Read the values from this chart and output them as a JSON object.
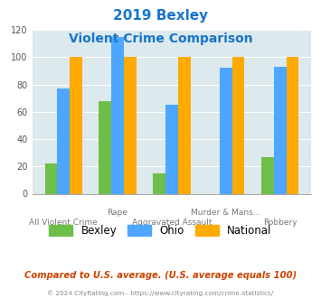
{
  "title_line1": "2019 Bexley",
  "title_line2": "Violent Crime Comparison",
  "title_color": "#1874cd",
  "cat_line1": [
    "",
    "Rape",
    "",
    "Murder & Mans...",
    ""
  ],
  "cat_line2": [
    "All Violent Crime",
    "",
    "Aggravated Assault",
    "",
    "Robbery"
  ],
  "bexley": [
    22,
    68,
    15,
    0,
    27
  ],
  "ohio": [
    77,
    115,
    65,
    92,
    93
  ],
  "national": [
    100,
    100,
    100,
    100,
    100
  ],
  "bexley_color": "#6dbf4a",
  "ohio_color": "#4da6ff",
  "national_color": "#ffaa00",
  "bg_color": "#dce9ed",
  "ylim": [
    0,
    120
  ],
  "yticks": [
    0,
    20,
    40,
    60,
    80,
    100,
    120
  ],
  "footnote": "Compared to U.S. average. (U.S. average equals 100)",
  "footnote_color": "#cc4400",
  "copyright": "© 2024 CityRating.com - https://www.cityrating.com/crime-statistics/",
  "copyright_color": "#888888",
  "legend_labels": [
    "Bexley",
    "Ohio",
    "National"
  ]
}
